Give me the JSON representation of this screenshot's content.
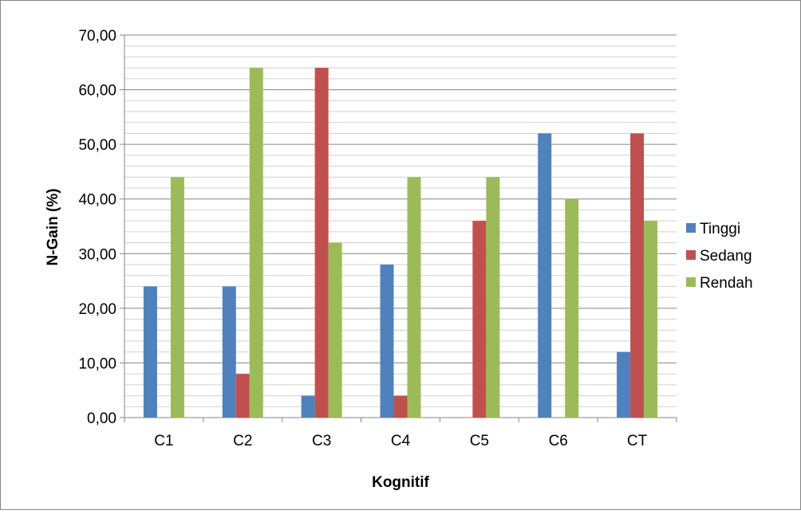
{
  "chart_data": {
    "type": "bar",
    "title": "",
    "xlabel": "Kognitif",
    "ylabel": "N-Gain (%)",
    "categories": [
      "C1",
      "C2",
      "C3",
      "C4",
      "C5",
      "C6",
      "CT"
    ],
    "series": [
      {
        "name": "Tinggi",
        "color": "#4f81bd",
        "values": [
          24,
          24,
          4,
          28,
          0,
          52,
          12
        ]
      },
      {
        "name": "Sedang",
        "color": "#c0504d",
        "values": [
          0,
          8,
          64,
          4,
          36,
          0,
          52
        ]
      },
      {
        "name": "Rendah",
        "color": "#9bbb59",
        "values": [
          44,
          64,
          32,
          44,
          44,
          40,
          36
        ]
      }
    ],
    "ylim": [
      0,
      70
    ],
    "major_step": 10,
    "minor_step": 2,
    "y_tick_labels": [
      "0,00",
      "10,00",
      "20,00",
      "30,00",
      "40,00",
      "50,00",
      "60,00",
      "70,00"
    ],
    "grid": true,
    "legend_position": "right"
  }
}
